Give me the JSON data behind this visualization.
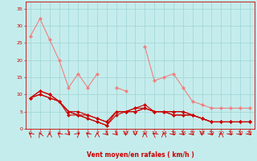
{
  "x": [
    0,
    1,
    2,
    3,
    4,
    5,
    6,
    7,
    8,
    9,
    10,
    11,
    12,
    13,
    14,
    15,
    16,
    17,
    18,
    19,
    20,
    21,
    22,
    23
  ],
  "line_rafales": [
    27,
    32,
    26,
    20,
    12,
    16,
    12,
    16,
    null,
    12,
    11,
    null,
    24,
    14,
    15,
    16,
    12,
    8,
    7,
    6,
    6,
    6,
    6,
    6
  ],
  "line_moy1": [
    9,
    11,
    10,
    8,
    5,
    4,
    3,
    2,
    1,
    4,
    5,
    5,
    6,
    5,
    5,
    4,
    4,
    4,
    3,
    2,
    2,
    2,
    2,
    2
  ],
  "line_moy2": [
    9,
    10,
    9,
    8,
    4,
    4,
    3,
    2,
    1,
    5,
    5,
    5,
    6,
    5,
    5,
    4,
    4,
    4,
    3,
    2,
    2,
    2,
    2,
    2
  ],
  "line_moy3": [
    9,
    10,
    9,
    8,
    5,
    4,
    4,
    3,
    2,
    5,
    5,
    6,
    6,
    5,
    5,
    5,
    5,
    4,
    3,
    2,
    2,
    2,
    2,
    2
  ],
  "line_moy4": [
    9,
    11,
    10,
    8,
    5,
    5,
    4,
    3,
    2,
    5,
    5,
    6,
    7,
    5,
    5,
    5,
    5,
    4,
    3,
    2,
    2,
    2,
    2,
    2
  ],
  "yticks": [
    0,
    5,
    10,
    15,
    20,
    25,
    30,
    35
  ],
  "ylim": [
    0,
    37
  ],
  "xlim": [
    -0.5,
    23.5
  ],
  "xlabel": "Vent moyen/en rafales ( km/h )",
  "bg_color": "#c5ecec",
  "grid_color": "#9dd4d4",
  "color_light": "#f08080",
  "color_dark": "#cc0000",
  "label_color": "#cc0000"
}
